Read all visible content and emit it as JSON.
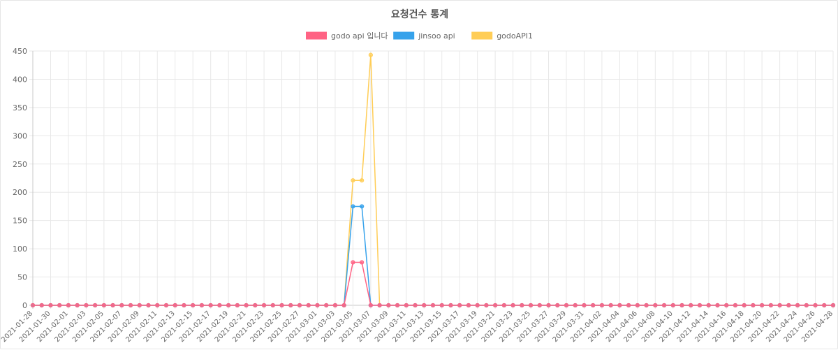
{
  "chart_data": {
    "type": "line",
    "title": "요청건수 통계",
    "xlabel": "",
    "ylabel": "",
    "ylim": [
      0,
      450
    ],
    "yticks": [
      0,
      50,
      100,
      150,
      200,
      250,
      300,
      350,
      400,
      450
    ],
    "grid": true,
    "legend": "top-center",
    "start_date": "2021-01-28",
    "x": [
      "2021-01-28",
      "2021-01-29",
      "2021-01-30",
      "2021-01-31",
      "2021-02-01",
      "2021-02-02",
      "2021-02-03",
      "2021-02-04",
      "2021-02-05",
      "2021-02-06",
      "2021-02-07",
      "2021-02-08",
      "2021-02-09",
      "2021-02-10",
      "2021-02-11",
      "2021-02-12",
      "2021-02-13",
      "2021-02-14",
      "2021-02-15",
      "2021-02-16",
      "2021-02-17",
      "2021-02-18",
      "2021-02-19",
      "2021-02-20",
      "2021-02-21",
      "2021-02-22",
      "2021-02-23",
      "2021-02-24",
      "2021-02-25",
      "2021-02-26",
      "2021-02-27",
      "2021-02-28",
      "2021-03-01",
      "2021-03-02",
      "2021-03-03",
      "2021-03-04",
      "2021-03-05",
      "2021-03-06",
      "2021-03-07",
      "2021-03-08",
      "2021-03-09",
      "2021-03-10",
      "2021-03-11",
      "2021-03-12",
      "2021-03-13",
      "2021-03-14",
      "2021-03-15",
      "2021-03-16",
      "2021-03-17",
      "2021-03-18",
      "2021-03-19",
      "2021-03-20",
      "2021-03-21",
      "2021-03-22",
      "2021-03-23",
      "2021-03-24",
      "2021-03-25",
      "2021-03-26",
      "2021-03-27",
      "2021-03-28",
      "2021-03-29",
      "2021-03-30",
      "2021-03-31",
      "2021-04-01",
      "2021-04-02",
      "2021-04-03",
      "2021-04-04",
      "2021-04-05",
      "2021-04-06",
      "2021-04-07",
      "2021-04-08",
      "2021-04-09",
      "2021-04-10",
      "2021-04-11",
      "2021-04-12",
      "2021-04-13",
      "2021-04-14",
      "2021-04-15",
      "2021-04-16",
      "2021-04-17",
      "2021-04-18",
      "2021-04-19",
      "2021-04-20",
      "2021-04-21",
      "2021-04-22",
      "2021-04-23",
      "2021-04-24",
      "2021-04-25",
      "2021-04-26",
      "2021-04-27",
      "2021-04-28"
    ],
    "x_tick_labels": [
      "2021-01-28",
      "2021-01-30",
      "2021-02-01",
      "2021-02-03",
      "2021-02-05",
      "2021-02-07",
      "2021-02-09",
      "2021-02-11",
      "2021-02-13",
      "2021-02-15",
      "2021-02-17",
      "2021-02-19",
      "2021-02-21",
      "2021-02-23",
      "2021-02-25",
      "2021-02-27",
      "2021-03-01",
      "2021-03-03",
      "2021-03-05",
      "2021-03-07",
      "2021-03-09",
      "2021-03-11",
      "2021-03-13",
      "2021-03-15",
      "2021-03-17",
      "2021-03-19",
      "2021-03-21",
      "2021-03-23",
      "2021-03-25",
      "2021-03-27",
      "2021-03-29",
      "2021-03-31",
      "2021-04-02",
      "2021-04-04",
      "2021-04-06",
      "2021-04-08",
      "2021-04-10",
      "2021-04-12",
      "2021-04-14",
      "2021-04-16",
      "2021-04-18",
      "2021-04-20",
      "2021-04-22",
      "2021-04-24",
      "2021-04-26",
      "2021-04-28"
    ],
    "series": [
      {
        "name": "godo api 입니다",
        "color": "#ff6384",
        "spikes": {
          "2021-03-05": 76,
          "2021-03-06": 76
        }
      },
      {
        "name": "jinsoo api",
        "color": "#36a2eb",
        "spikes": {
          "2021-03-05": 175,
          "2021-03-06": 175
        }
      },
      {
        "name": "godoAPI1",
        "color": "#ffcd56",
        "spikes": {
          "2021-03-05": 221,
          "2021-03-06": 221,
          "2021-03-07": 443
        }
      }
    ]
  }
}
